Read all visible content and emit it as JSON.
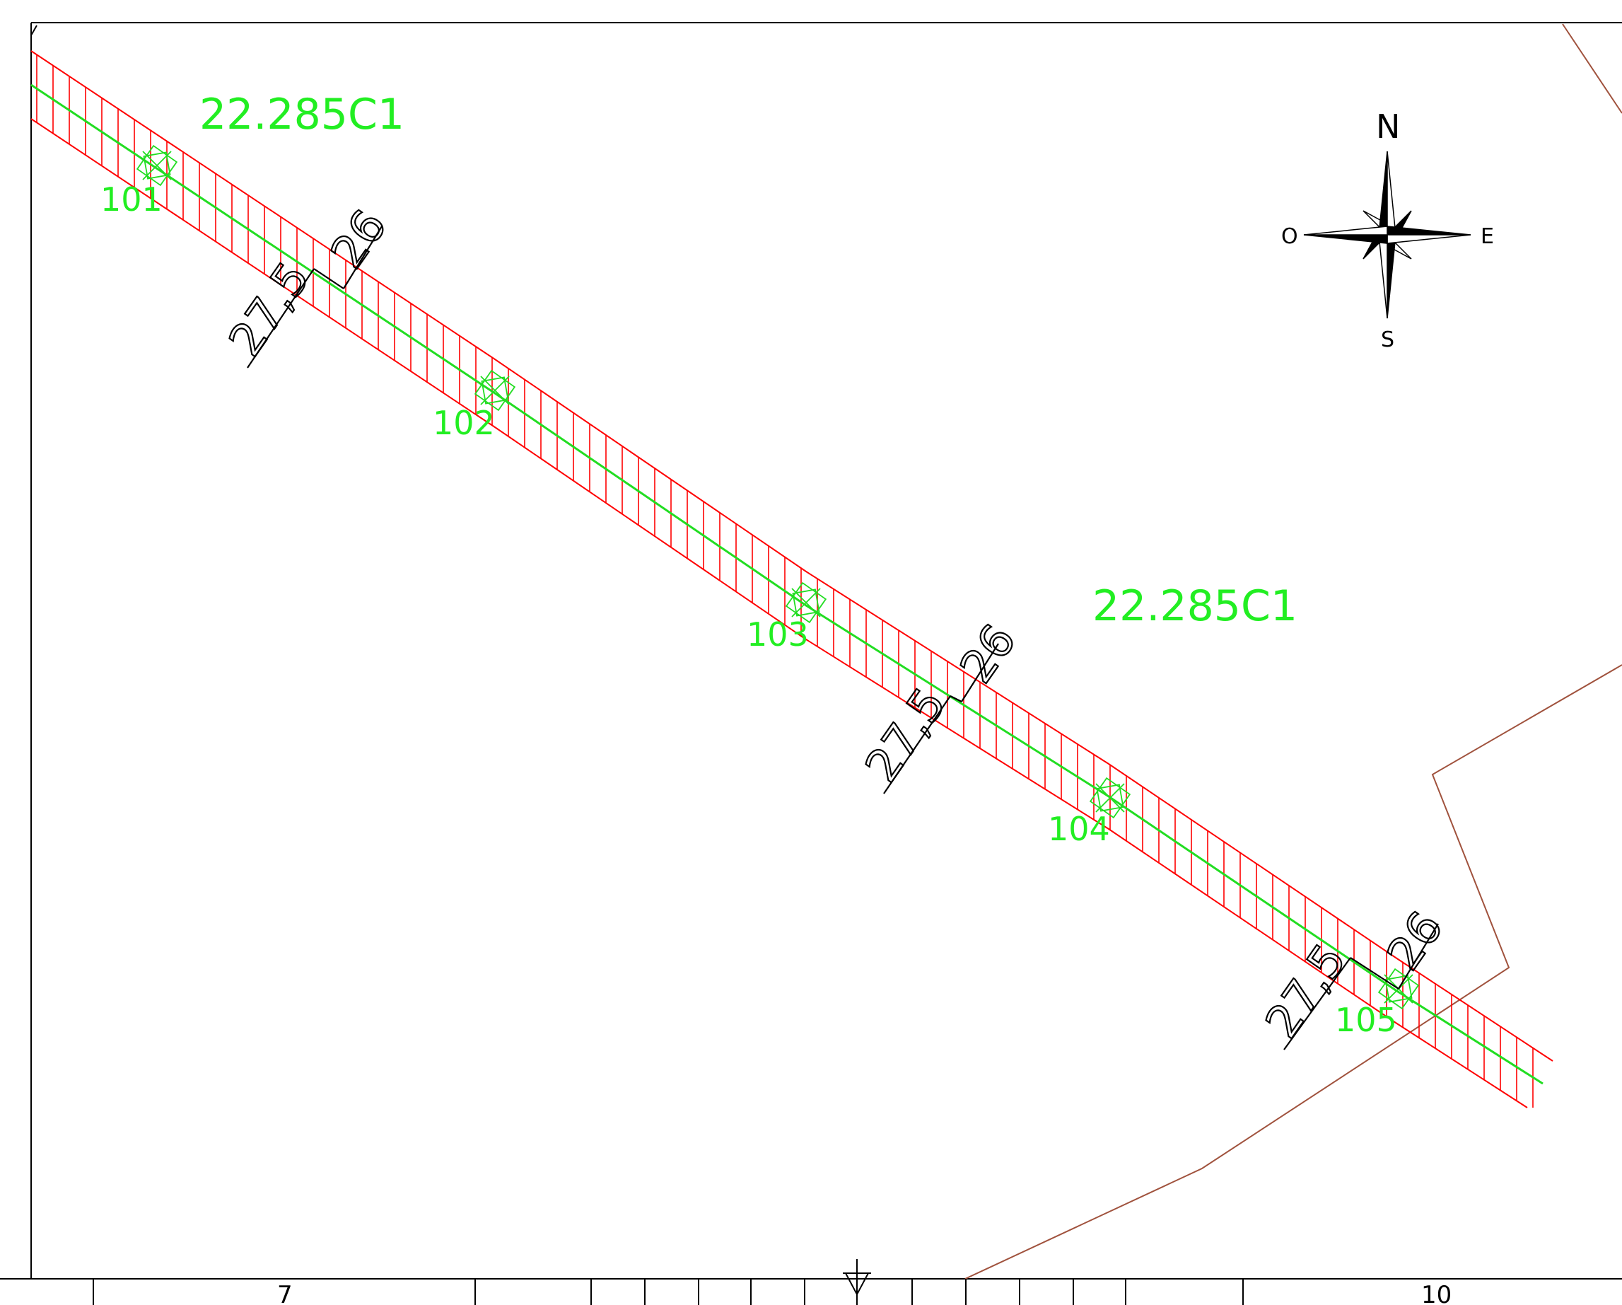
{
  "parcel_labels": {
    "upper": "22.285C1",
    "lower": "22.285C1"
  },
  "points": [
    {
      "id": "101",
      "label": "101"
    },
    {
      "id": "102",
      "label": "102"
    },
    {
      "id": "103",
      "label": "103"
    },
    {
      "id": "104",
      "label": "104"
    },
    {
      "id": "105",
      "label": "105"
    }
  ],
  "dimensions": {
    "sections": [
      {
        "left": "27,5",
        "right": "26"
      },
      {
        "left": "27,5",
        "right": "26"
      },
      {
        "left": "27,5",
        "right": "26"
      }
    ]
  },
  "compass": {
    "north": "N",
    "south": "S",
    "east": "E",
    "west": "O"
  },
  "ruler": {
    "labels": [
      "7",
      "10"
    ]
  },
  "colors": {
    "axis_line": "#22dd22",
    "hatch": "#ff0000",
    "boundary": "#a0523d",
    "frame": "#000000",
    "labels": "#22ee22"
  }
}
